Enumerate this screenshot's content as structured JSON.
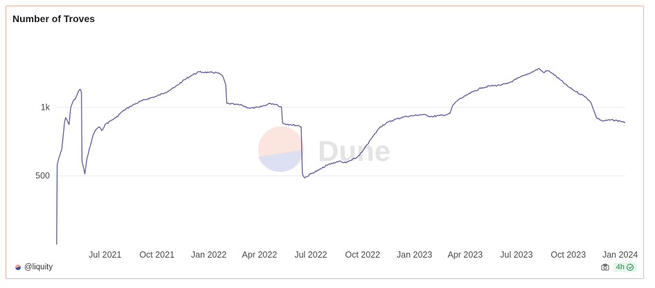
{
  "chart_data": {
    "type": "line",
    "title": "Number of Troves",
    "xlabel": "",
    "ylabel": "",
    "scale": "log",
    "ylim": [
      250,
      2100
    ],
    "x_range": [
      "2021-04-05",
      "2024-01-10"
    ],
    "grid": true,
    "y_ticks": [
      {
        "value": 500,
        "label": "500"
      },
      {
        "value": 1000,
        "label": "1k"
      }
    ],
    "x_ticks": [
      {
        "date": "2021-07-01",
        "label": "Jul 2021"
      },
      {
        "date": "2021-10-01",
        "label": "Oct 2021"
      },
      {
        "date": "2022-01-01",
        "label": "Jan 2022"
      },
      {
        "date": "2022-04-01",
        "label": "Apr 2022"
      },
      {
        "date": "2022-07-01",
        "label": "Jul 2022"
      },
      {
        "date": "2022-10-01",
        "label": "Oct 2022"
      },
      {
        "date": "2023-01-01",
        "label": "Jan 2023"
      },
      {
        "date": "2023-04-01",
        "label": "Apr 2023"
      },
      {
        "date": "2023-07-01",
        "label": "Jul 2023"
      },
      {
        "date": "2023-10-01",
        "label": "Oct 2023"
      },
      {
        "date": "2024-01-01",
        "label": "Jan 2024"
      }
    ],
    "series": [
      {
        "color": "#5a5a9e",
        "points": [
          [
            "2021-04-06",
            250
          ],
          [
            "2021-04-07",
            560
          ],
          [
            "2021-04-10",
            600
          ],
          [
            "2021-04-15",
            650
          ],
          [
            "2021-04-20",
            860
          ],
          [
            "2021-04-22",
            900
          ],
          [
            "2021-04-25",
            870
          ],
          [
            "2021-04-28",
            840
          ],
          [
            "2021-05-01",
            1000
          ],
          [
            "2021-05-05",
            1060
          ],
          [
            "2021-05-10",
            1100
          ],
          [
            "2021-05-15",
            1180
          ],
          [
            "2021-05-18",
            1200
          ],
          [
            "2021-05-20",
            1160
          ],
          [
            "2021-05-21",
            580
          ],
          [
            "2021-05-24",
            540
          ],
          [
            "2021-05-26",
            510
          ],
          [
            "2021-05-30",
            600
          ],
          [
            "2021-06-05",
            680
          ],
          [
            "2021-06-10",
            760
          ],
          [
            "2021-06-15",
            800
          ],
          [
            "2021-06-20",
            820
          ],
          [
            "2021-06-25",
            790
          ],
          [
            "2021-07-01",
            840
          ],
          [
            "2021-07-10",
            870
          ],
          [
            "2021-07-20",
            900
          ],
          [
            "2021-08-01",
            960
          ],
          [
            "2021-08-15",
            1010
          ],
          [
            "2021-09-01",
            1060
          ],
          [
            "2021-09-15",
            1090
          ],
          [
            "2021-10-01",
            1120
          ],
          [
            "2021-10-15",
            1160
          ],
          [
            "2021-11-01",
            1220
          ],
          [
            "2021-11-15",
            1300
          ],
          [
            "2021-12-01",
            1380
          ],
          [
            "2021-12-15",
            1430
          ],
          [
            "2022-01-01",
            1420
          ],
          [
            "2022-01-15",
            1420
          ],
          [
            "2022-01-25",
            1380
          ],
          [
            "2022-01-31",
            1260
          ],
          [
            "2022-02-02",
            1040
          ],
          [
            "2022-02-15",
            1030
          ],
          [
            "2022-03-01",
            1020
          ],
          [
            "2022-03-15",
            990
          ],
          [
            "2022-04-01",
            1000
          ],
          [
            "2022-04-20",
            1040
          ],
          [
            "2022-05-01",
            1030
          ],
          [
            "2022-05-10",
            1000
          ],
          [
            "2022-05-12",
            850
          ],
          [
            "2022-05-25",
            840
          ],
          [
            "2022-06-10",
            830
          ],
          [
            "2022-06-14",
            820
          ],
          [
            "2022-06-16",
            510
          ],
          [
            "2022-06-20",
            490
          ],
          [
            "2022-07-01",
            510
          ],
          [
            "2022-07-15",
            530
          ],
          [
            "2022-08-01",
            560
          ],
          [
            "2022-08-20",
            580
          ],
          [
            "2022-09-01",
            570
          ],
          [
            "2022-09-20",
            600
          ],
          [
            "2022-10-01",
            640
          ],
          [
            "2022-10-15",
            720
          ],
          [
            "2022-11-01",
            820
          ],
          [
            "2022-11-15",
            860
          ],
          [
            "2022-12-01",
            890
          ],
          [
            "2022-12-15",
            910
          ],
          [
            "2023-01-01",
            920
          ],
          [
            "2023-01-15",
            930
          ],
          [
            "2023-02-01",
            910
          ],
          [
            "2023-02-15",
            920
          ],
          [
            "2023-03-01",
            930
          ],
          [
            "2023-03-05",
            940
          ],
          [
            "2023-03-10",
            1020
          ],
          [
            "2023-03-20",
            1080
          ],
          [
            "2023-04-01",
            1120
          ],
          [
            "2023-04-15",
            1170
          ],
          [
            "2023-05-01",
            1220
          ],
          [
            "2023-05-15",
            1240
          ],
          [
            "2023-06-01",
            1250
          ],
          [
            "2023-06-15",
            1270
          ],
          [
            "2023-07-01",
            1330
          ],
          [
            "2023-07-15",
            1380
          ],
          [
            "2023-08-01",
            1440
          ],
          [
            "2023-08-10",
            1480
          ],
          [
            "2023-08-18",
            1420
          ],
          [
            "2023-08-25",
            1450
          ],
          [
            "2023-09-01",
            1420
          ],
          [
            "2023-09-15",
            1330
          ],
          [
            "2023-10-01",
            1230
          ],
          [
            "2023-10-15",
            1170
          ],
          [
            "2023-11-01",
            1110
          ],
          [
            "2023-11-10",
            1050
          ],
          [
            "2023-11-20",
            900
          ],
          [
            "2023-12-01",
            870
          ],
          [
            "2023-12-15",
            880
          ],
          [
            "2024-01-01",
            870
          ],
          [
            "2024-01-10",
            860
          ]
        ]
      }
    ]
  },
  "footer": {
    "author": "@liquity",
    "refresh": "4h"
  }
}
